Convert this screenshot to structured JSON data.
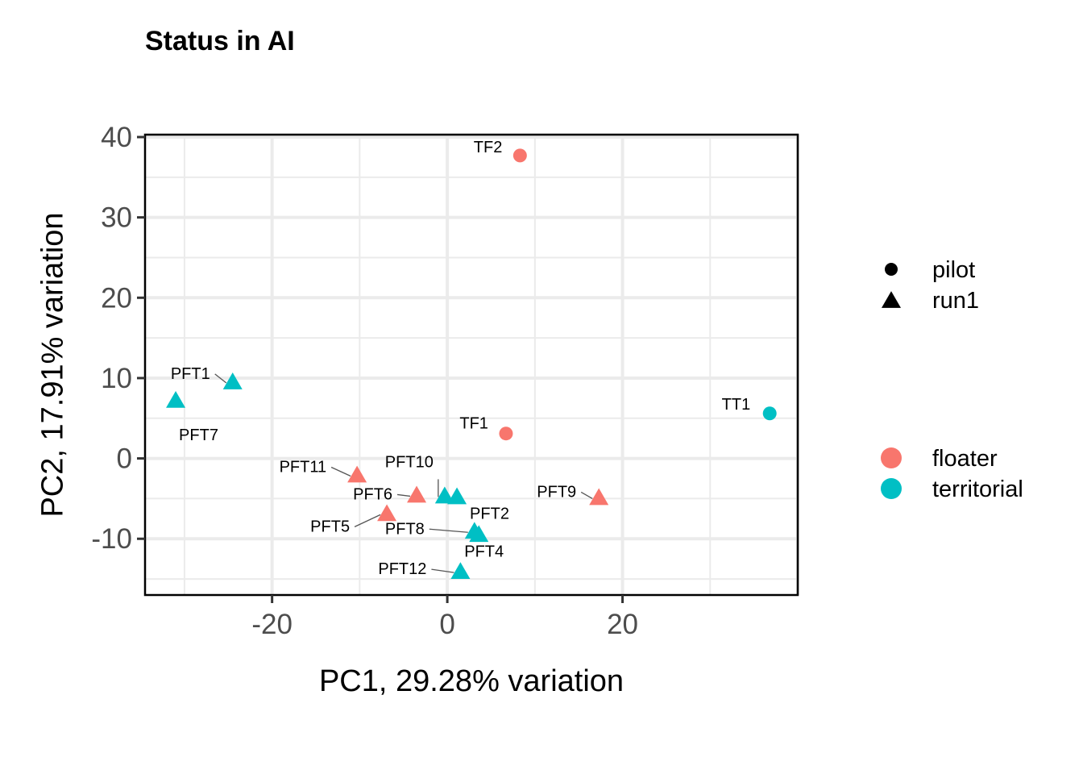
{
  "chart_data": {
    "type": "scatter",
    "title": "Status in AI",
    "xlabel": "PC1, 29.28% variation",
    "ylabel": "PC2, 17.91% variation",
    "xlim": [
      -34.5,
      40
    ],
    "ylim": [
      -17,
      40.3
    ],
    "x_ticks": [
      -20,
      0,
      20
    ],
    "x_tick_labels": [
      "-20",
      "0",
      "20"
    ],
    "y_ticks": [
      -10,
      0,
      10,
      20,
      30,
      40
    ],
    "y_tick_labels": [
      "-10",
      "0",
      "10",
      "20",
      "30",
      "40"
    ],
    "grid": true,
    "legend_placement": "right",
    "shape_legend": [
      {
        "label": "pilot",
        "shape": "circle"
      },
      {
        "label": "run1",
        "shape": "triangle"
      }
    ],
    "color_legend": [
      {
        "label": "floater",
        "color": "#F8766D"
      },
      {
        "label": "territorial",
        "color": "#00BFC4"
      }
    ],
    "points": [
      {
        "label": "TF2",
        "x": 8.3,
        "y": 37.7,
        "group": "floater",
        "batch": "pilot"
      },
      {
        "label": "TF1",
        "x": 6.7,
        "y": 3.1,
        "group": "floater",
        "batch": "pilot"
      },
      {
        "label": "TT1",
        "x": 36.8,
        "y": 5.6,
        "group": "territorial",
        "batch": "pilot"
      },
      {
        "label": "PFT1",
        "x": -24.5,
        "y": 9.4,
        "group": "territorial",
        "batch": "run1"
      },
      {
        "label": "PFT7",
        "x": -31.0,
        "y": 7.1,
        "group": "territorial",
        "batch": "run1"
      },
      {
        "label": "PFT11",
        "x": -10.3,
        "y": -2.2,
        "group": "floater",
        "batch": "run1"
      },
      {
        "label": "PFT10",
        "x": -0.3,
        "y": -4.8,
        "group": "territorial",
        "batch": "run1"
      },
      {
        "label": "PFT6",
        "x": -3.5,
        "y": -4.7,
        "group": "floater",
        "batch": "run1"
      },
      {
        "label": "PFT2",
        "x": 1.1,
        "y": -4.9,
        "group": "territorial",
        "batch": "run1"
      },
      {
        "label": "PFT5",
        "x": -6.9,
        "y": -7.0,
        "group": "floater",
        "batch": "run1"
      },
      {
        "label": "PFT9",
        "x": 17.3,
        "y": -5.0,
        "group": "floater",
        "batch": "run1"
      },
      {
        "label": "PFT8",
        "x": 3.1,
        "y": -9.2,
        "group": "territorial",
        "batch": "run1"
      },
      {
        "label": "PFT4",
        "x": 3.6,
        "y": -9.6,
        "group": "territorial",
        "batch": "run1"
      },
      {
        "label": "PFT12",
        "x": 1.5,
        "y": -14.2,
        "group": "territorial",
        "batch": "run1"
      }
    ]
  }
}
